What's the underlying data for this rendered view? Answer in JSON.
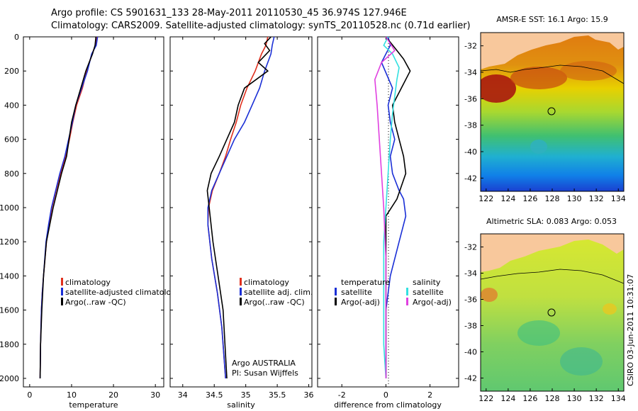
{
  "header": {
    "line1": "Argo profile: CS 5901631_133 28-May-2011 20110530_45 36.974S 127.946E",
    "line2": "Climatology: CARS2009. Satellite-adjusted climatology: synTS_20110528.nc (0.71d earlier)"
  },
  "stamp": "CSIRO 03-Jun-2011 10:31:07",
  "colors": {
    "climatology": "#e0301e",
    "satellite": "#1a2fd6",
    "argo": "#000000",
    "sal_satellite": "#33e0e0",
    "sal_argo": "#e040e0",
    "land": "#f8c89c"
  },
  "chart_data": [
    {
      "type": "line",
      "id": "temperature",
      "xlabel": "temperature",
      "ylabel": "",
      "title": "",
      "xlim": [
        -1.5,
        32
      ],
      "ylim": [
        2050,
        0
      ],
      "xticks": [
        "0",
        "10",
        "20",
        "30"
      ],
      "yticks": [
        "0",
        "200",
        "400",
        "600",
        "800",
        "1000",
        "1200",
        "1400",
        "1600",
        "1800",
        "2000"
      ],
      "legend": [
        "climatology",
        "satellite-adjusted climatology",
        "Argo(..raw -QC)"
      ],
      "series": [
        {
          "name": "climatology",
          "color": "#e0301e",
          "x": [
            16.1,
            15.7,
            14.9,
            13.6,
            12.6,
            11.2,
            10.3,
            9.5,
            8.6,
            7.4,
            6.3,
            5.3,
            4.6,
            4.0,
            3.3,
            3.0,
            2.8,
            2.6,
            2.5
          ],
          "y": [
            0,
            50,
            100,
            200,
            300,
            400,
            500,
            600,
            700,
            800,
            900,
            1000,
            1100,
            1200,
            1400,
            1500,
            1600,
            1800,
            2000
          ]
        },
        {
          "name": "satellite-adjusted climatology",
          "color": "#1a2fd6",
          "x": [
            16.2,
            15.9,
            14.8,
            13.8,
            12.4,
            11.0,
            10.2,
            9.3,
            8.4,
            7.2,
            6.2,
            5.2,
            4.5,
            3.9,
            3.3,
            3.0,
            2.8,
            2.6,
            2.5
          ],
          "y": [
            0,
            50,
            100,
            200,
            300,
            400,
            500,
            600,
            700,
            800,
            900,
            1000,
            1100,
            1200,
            1400,
            1500,
            1600,
            1800,
            2000
          ]
        },
        {
          "name": "Argo(..raw -QC)",
          "color": "#000000",
          "x": [
            15.8,
            15.6,
            15.0,
            14.2,
            13.4,
            12.2,
            11.0,
            10.0,
            9.4,
            8.8,
            7.6,
            6.6,
            5.6,
            4.8,
            4.0,
            3.3,
            2.9,
            2.6,
            2.5
          ],
          "y": [
            0,
            50,
            100,
            150,
            200,
            300,
            400,
            500,
            600,
            700,
            800,
            900,
            1000,
            1100,
            1200,
            1400,
            1600,
            1800,
            2000
          ]
        }
      ]
    },
    {
      "type": "line",
      "id": "salinity",
      "xlabel": "salinity",
      "ylabel": "",
      "title": "",
      "xlim": [
        33.8,
        36.05
      ],
      "ylim": [
        2050,
        0
      ],
      "xticks": [
        "34",
        "34.5",
        "35",
        "35.5",
        "36"
      ],
      "legend": [
        "climatology",
        "satellite adj. clim.",
        "Argo(..raw -QC)"
      ],
      "notes": [
        "Argo AUSTRALIA",
        "PI: Susan Wijffels"
      ],
      "series": [
        {
          "name": "climatology",
          "color": "#e0301e",
          "x": [
            35.35,
            35.32,
            35.25,
            35.15,
            35.02,
            34.92,
            34.85,
            34.76,
            34.68,
            34.58,
            34.47,
            34.41,
            34.4,
            34.46,
            34.55,
            34.62,
            34.68
          ],
          "y": [
            0,
            50,
            100,
            200,
            300,
            400,
            500,
            600,
            700,
            800,
            900,
            1000,
            1100,
            1300,
            1500,
            1700,
            2000
          ]
        },
        {
          "name": "satellite adj. clim.",
          "color": "#1a2fd6",
          "x": [
            35.45,
            35.42,
            35.4,
            35.3,
            35.22,
            35.1,
            34.98,
            34.82,
            34.7,
            34.58,
            34.46,
            34.4,
            34.4,
            34.46,
            34.55,
            34.62,
            34.68
          ],
          "y": [
            0,
            50,
            100,
            200,
            300,
            400,
            500,
            600,
            700,
            800,
            900,
            1000,
            1100,
            1300,
            1500,
            1700,
            2000
          ]
        },
        {
          "name": "Argo(..raw -QC)",
          "color": "#000000",
          "x": [
            35.4,
            35.3,
            35.38,
            35.2,
            35.35,
            34.98,
            34.88,
            34.82,
            34.7,
            34.58,
            34.45,
            34.39,
            34.42,
            34.48,
            34.56,
            34.64,
            34.7
          ],
          "y": [
            0,
            40,
            80,
            150,
            200,
            300,
            400,
            500,
            600,
            700,
            800,
            900,
            1000,
            1200,
            1400,
            1600,
            2000
          ]
        }
      ]
    },
    {
      "type": "line",
      "id": "difference",
      "xlabel": "difference from climatology",
      "ylabel": "",
      "title": "",
      "xlim": [
        -3.1,
        3.3
      ],
      "ylim": [
        2050,
        0
      ],
      "xticks": [
        "-2",
        "0",
        "2"
      ],
      "legend_groups": [
        {
          "title": "temperature",
          "items": [
            "satellite",
            "Argo(-adj)"
          ]
        },
        {
          "title": "salinity",
          "items": [
            "satellite",
            "Argo(-adj)"
          ]
        }
      ],
      "series": [
        {
          "name": "temperature satellite",
          "color": "#1a2fd6",
          "x": [
            0.1,
            0.2,
            -0.2,
            0.3,
            0.1,
            0.2,
            0.4,
            0.2,
            0.3,
            0.6,
            0.8,
            0.9,
            0.6,
            0.2,
            0.0,
            0.0,
            0.0
          ],
          "y": [
            0,
            50,
            150,
            300,
            400,
            500,
            600,
            700,
            800,
            900,
            950,
            1050,
            1200,
            1400,
            1600,
            1800,
            2000
          ]
        },
        {
          "name": "temperature Argo(-adj)",
          "color": "#000000",
          "x": [
            0.0,
            0.5,
            0.8,
            1.1,
            0.7,
            0.3,
            0.4,
            0.6,
            0.8,
            0.9,
            0.5,
            0.0,
            0.0,
            0.0,
            0.0
          ],
          "y": [
            0,
            80,
            130,
            200,
            300,
            400,
            500,
            600,
            700,
            800,
            950,
            1050,
            1300,
            1600,
            2000
          ]
        },
        {
          "name": "salinity satellite",
          "color": "#33e0e0",
          "x": [
            0.1,
            -0.1,
            0.3,
            0.6,
            0.5,
            0.4,
            0.3,
            0.2,
            0.1,
            0.0,
            -0.1,
            -0.1,
            -0.1,
            0.0
          ],
          "y": [
            0,
            50,
            100,
            180,
            250,
            350,
            450,
            600,
            800,
            1000,
            1200,
            1500,
            1800,
            2000
          ]
        },
        {
          "name": "salinity Argo(-adj)",
          "color": "#e040e0",
          "x": [
            0.0,
            0.4,
            -0.2,
            -0.5,
            -0.4,
            -0.3,
            -0.2,
            -0.1,
            0.0,
            0.0,
            0.0
          ],
          "y": [
            0,
            80,
            150,
            250,
            400,
            600,
            800,
            1000,
            1300,
            1600,
            2000
          ]
        }
      ]
    },
    {
      "type": "heatmap",
      "id": "sst-map",
      "title": "AMSR-E SST: 16.1 Argo: 15.9",
      "xticks": [
        "122",
        "124",
        "126",
        "128",
        "130",
        "132",
        "134"
      ],
      "yticks": [
        "-32",
        "-34",
        "-36",
        "-38",
        "-40",
        "-42"
      ],
      "xlim": [
        121.5,
        134.5
      ],
      "ylim": [
        -43,
        -31
      ],
      "marker": {
        "lon": 127.946,
        "lat": -36.974
      }
    },
    {
      "type": "heatmap",
      "id": "sla-map",
      "title": "Altimetric SLA: 0.083 Argo: 0.053",
      "xticks": [
        "122",
        "124",
        "126",
        "128",
        "130",
        "132",
        "134"
      ],
      "yticks": [
        "-32",
        "-34",
        "-36",
        "-38",
        "-40",
        "-42"
      ],
      "xlim": [
        121.5,
        134.5
      ],
      "ylim": [
        -43,
        -31
      ],
      "marker": {
        "lon": 127.946,
        "lat": -36.974
      }
    }
  ]
}
